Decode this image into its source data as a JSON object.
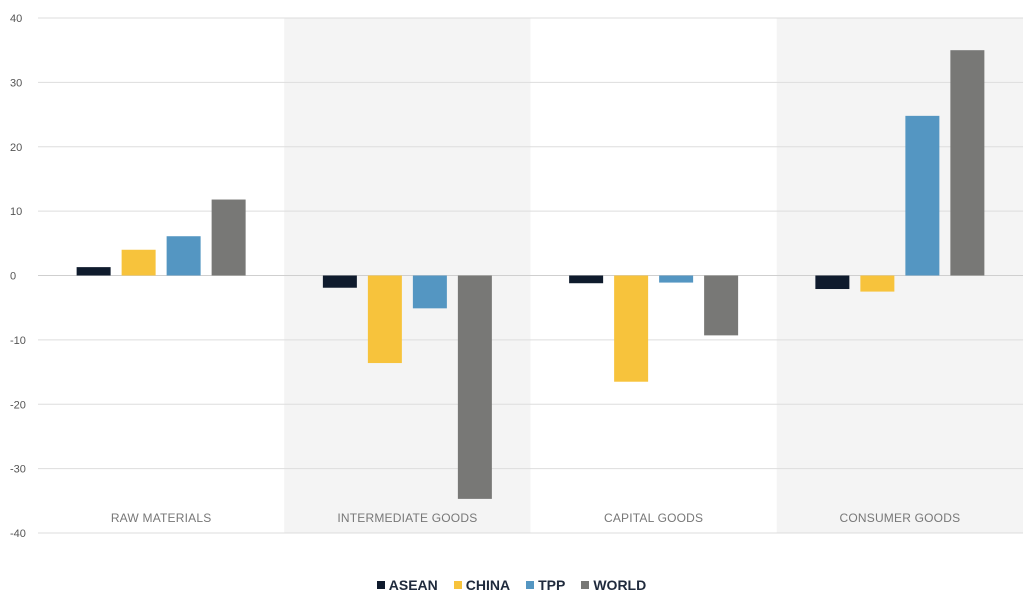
{
  "chart_data": {
    "type": "bar",
    "categories": [
      "RAW MATERIALS",
      "INTERMEDIATE GOODS",
      "CAPITAL GOODS",
      "CONSUMER GOODS"
    ],
    "series": [
      {
        "name": "ASEAN",
        "color": "#0f1b2d",
        "values": [
          1.3,
          -1.9,
          -1.2,
          -2.1
        ]
      },
      {
        "name": "CHINA",
        "color": "#f7c33c",
        "values": [
          4.0,
          -13.6,
          -16.5,
          -2.5
        ]
      },
      {
        "name": "TPP",
        "color": "#5496c2",
        "values": [
          6.1,
          -5.1,
          -1.1,
          24.8
        ]
      },
      {
        "name": "WORLD",
        "color": "#787876",
        "values": [
          11.8,
          -34.7,
          -9.3,
          35.0
        ]
      }
    ],
    "ylim": [
      -40,
      40
    ],
    "yticks": [
      "40",
      "30",
      "20",
      "10",
      "0",
      "-10",
      "-20",
      "-30",
      "-40"
    ],
    "ytick_values": [
      40,
      30,
      20,
      10,
      0,
      -10,
      -20,
      -30,
      -40
    ],
    "grid": true,
    "alternating_band_color": "#f4f4f4",
    "legend_position": "bottom-center",
    "title": "",
    "xlabel": "",
    "ylabel": ""
  }
}
